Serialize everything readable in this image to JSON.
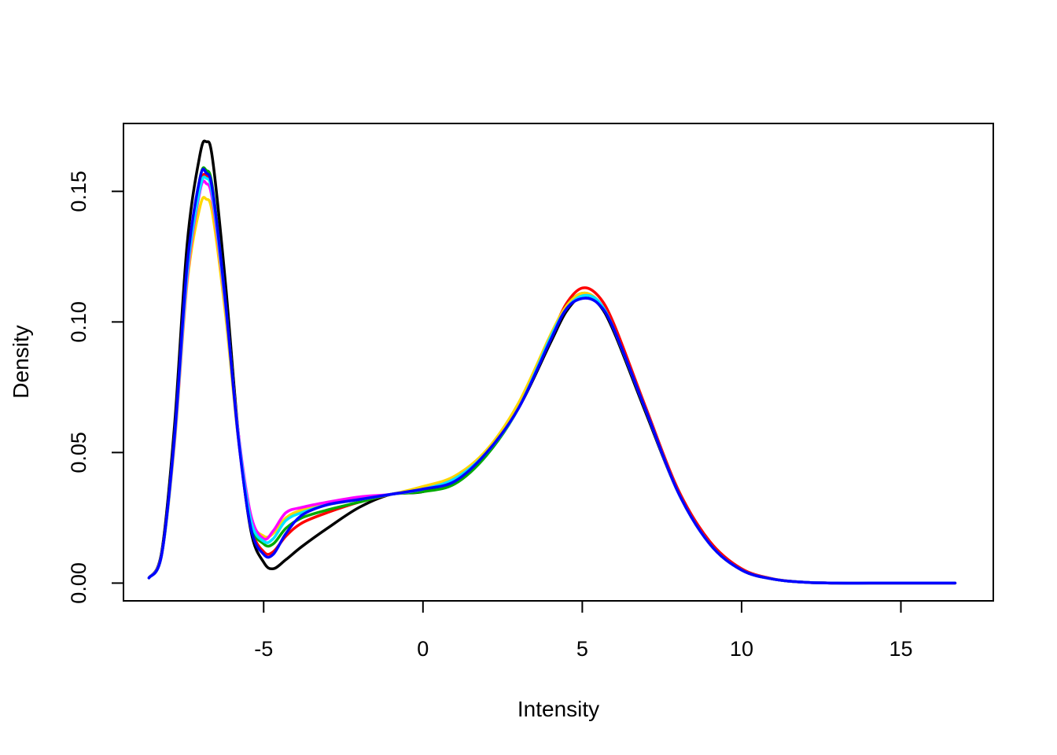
{
  "chart_data": {
    "type": "line",
    "title": "",
    "xlabel": "Intensity",
    "ylabel": "Density",
    "xlim": [
      -9.4,
      17.9
    ],
    "ylim": [
      -0.0068,
      0.176
    ],
    "xticks": [
      -5,
      0,
      5,
      10,
      15
    ],
    "yticks": [
      0.0,
      0.05,
      0.1,
      0.15
    ],
    "xtick_labels": [
      "-5",
      "0",
      "5",
      "10",
      "15"
    ],
    "ytick_labels": [
      "0.00",
      "0.05",
      "0.10",
      "0.15"
    ],
    "grid": false,
    "legend": "none",
    "x": [
      -8.6,
      -8.2,
      -7.8,
      -7.4,
      -7.0,
      -6.8,
      -6.6,
      -6.2,
      -5.8,
      -5.4,
      -5.0,
      -4.7,
      -4.3,
      -3.8,
      -3.0,
      -2.0,
      -1.0,
      0.0,
      1.0,
      2.0,
      3.0,
      4.0,
      4.5,
      5.0,
      5.5,
      6.0,
      7.0,
      8.0,
      9.0,
      10.0,
      11.0,
      12.0,
      13.0,
      14.0,
      15.0,
      16.0,
      16.7
    ],
    "series": [
      {
        "color": "#000000",
        "values": [
          0.002,
          0.012,
          0.06,
          0.13,
          0.164,
          0.169,
          0.162,
          0.115,
          0.058,
          0.02,
          0.008,
          0.0055,
          0.009,
          0.014,
          0.021,
          0.029,
          0.034,
          0.035,
          0.04,
          0.05,
          0.067,
          0.092,
          0.104,
          0.11,
          0.107,
          0.096,
          0.065,
          0.035,
          0.015,
          0.005,
          0.0015,
          0.0003,
          0.0,
          0.0,
          0.0,
          0.0,
          0.0
        ]
      },
      {
        "color": "#ff0000",
        "values": [
          0.002,
          0.011,
          0.055,
          0.12,
          0.152,
          0.156,
          0.149,
          0.107,
          0.056,
          0.022,
          0.012,
          0.012,
          0.018,
          0.023,
          0.027,
          0.031,
          0.034,
          0.036,
          0.04,
          0.05,
          0.067,
          0.094,
          0.107,
          0.113,
          0.11,
          0.099,
          0.067,
          0.036,
          0.016,
          0.0055,
          0.0016,
          0.0003,
          0.0,
          0.0,
          0.0,
          0.0,
          0.0
        ]
      },
      {
        "color": "#00aa00",
        "values": [
          0.002,
          0.011,
          0.056,
          0.121,
          0.155,
          0.158,
          0.151,
          0.108,
          0.057,
          0.023,
          0.015,
          0.015,
          0.021,
          0.025,
          0.028,
          0.031,
          0.034,
          0.035,
          0.038,
          0.049,
          0.067,
          0.094,
          0.106,
          0.111,
          0.108,
          0.097,
          0.066,
          0.035,
          0.015,
          0.005,
          0.0015,
          0.0003,
          0.0,
          0.0,
          0.0,
          0.0,
          0.0
        ]
      },
      {
        "color": "#ffd700",
        "values": [
          0.002,
          0.011,
          0.053,
          0.115,
          0.144,
          0.147,
          0.141,
          0.103,
          0.056,
          0.025,
          0.018,
          0.019,
          0.025,
          0.028,
          0.03,
          0.032,
          0.034,
          0.037,
          0.041,
          0.051,
          0.069,
          0.095,
          0.106,
          0.111,
          0.108,
          0.097,
          0.066,
          0.035,
          0.015,
          0.005,
          0.0015,
          0.0003,
          0.0,
          0.0,
          0.0,
          0.0,
          0.0
        ]
      },
      {
        "color": "#ff00ff",
        "values": [
          0.002,
          0.011,
          0.054,
          0.117,
          0.15,
          0.153,
          0.146,
          0.106,
          0.058,
          0.026,
          0.017,
          0.02,
          0.027,
          0.029,
          0.031,
          0.033,
          0.034,
          0.036,
          0.04,
          0.05,
          0.067,
          0.094,
          0.105,
          0.11,
          0.108,
          0.097,
          0.066,
          0.035,
          0.015,
          0.005,
          0.0015,
          0.0003,
          0.0,
          0.0,
          0.0,
          0.0,
          0.0
        ]
      },
      {
        "color": "#00e5ff",
        "values": [
          0.002,
          0.011,
          0.055,
          0.119,
          0.151,
          0.155,
          0.148,
          0.107,
          0.057,
          0.024,
          0.016,
          0.017,
          0.024,
          0.027,
          0.03,
          0.032,
          0.034,
          0.036,
          0.04,
          0.05,
          0.067,
          0.094,
          0.105,
          0.11,
          0.108,
          0.097,
          0.066,
          0.035,
          0.015,
          0.005,
          0.0015,
          0.0003,
          0.0,
          0.0,
          0.0,
          0.0,
          0.0
        ]
      },
      {
        "color": "#0000ff",
        "values": [
          0.002,
          0.011,
          0.056,
          0.122,
          0.155,
          0.157,
          0.15,
          0.108,
          0.056,
          0.021,
          0.011,
          0.011,
          0.019,
          0.026,
          0.03,
          0.032,
          0.034,
          0.036,
          0.039,
          0.05,
          0.067,
          0.093,
          0.105,
          0.109,
          0.107,
          0.097,
          0.066,
          0.035,
          0.015,
          0.005,
          0.0015,
          0.0003,
          0.0,
          0.0,
          0.0,
          0.0,
          0.0
        ]
      }
    ]
  }
}
